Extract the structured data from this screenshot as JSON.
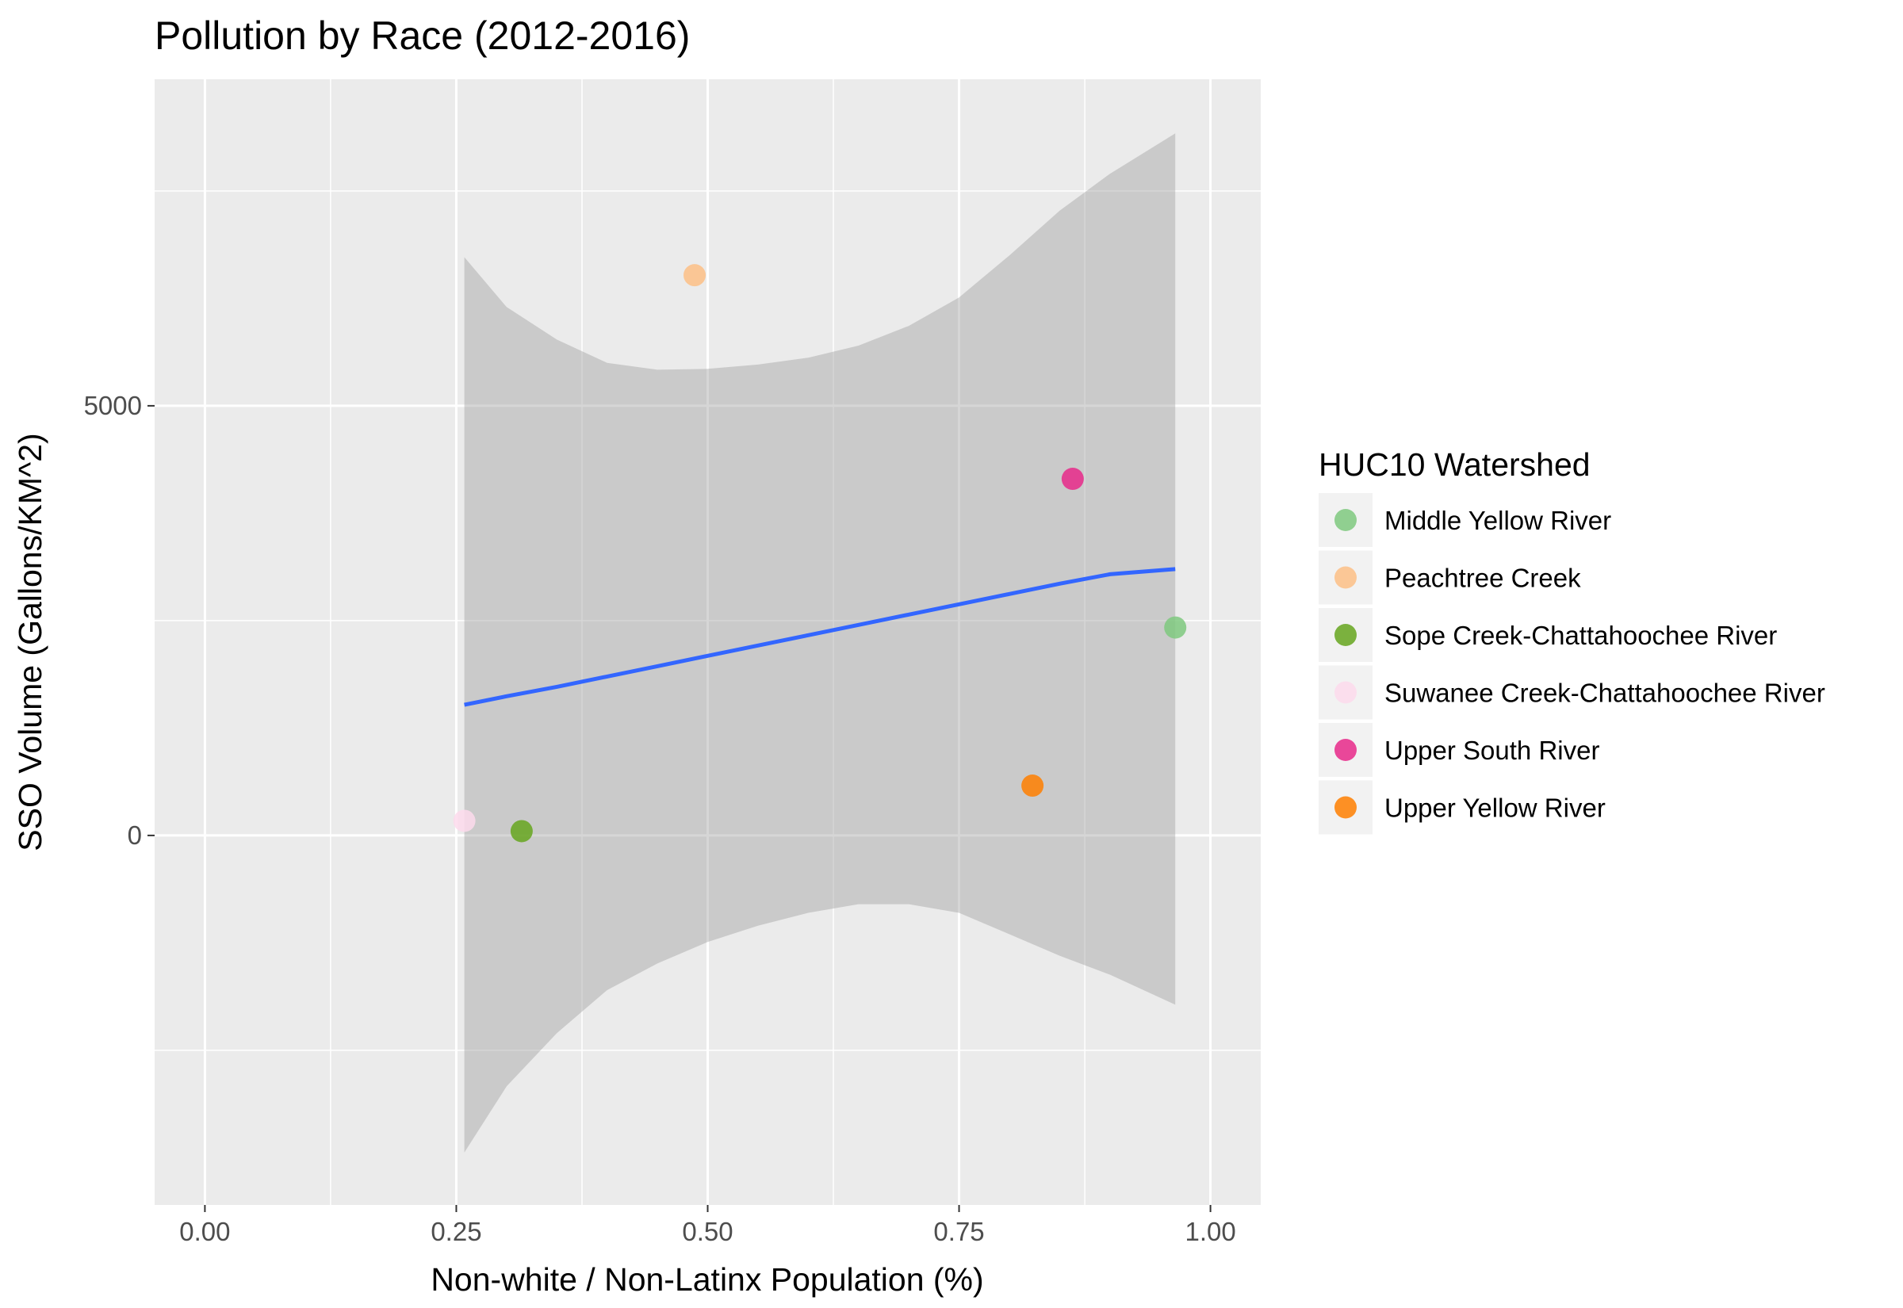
{
  "chart_data": {
    "type": "scatter",
    "title": "Pollution by Race (2012-2016)",
    "xlabel": "Non-white / Non-Latinx Population (%)",
    "ylabel": "SSO Volume (Gallons/KM^2)",
    "xlim": [
      -0.05,
      1.05
    ],
    "ylim": [
      -4300,
      8800
    ],
    "x_ticks": [
      0.0,
      0.25,
      0.5,
      0.75,
      1.0
    ],
    "x_tick_labels": [
      "0.00",
      "0.25",
      "0.50",
      "0.75",
      "1.00"
    ],
    "y_ticks": [
      0,
      5000
    ],
    "y_tick_labels": [
      "0",
      "5000"
    ],
    "grid": true,
    "legend": {
      "title": "HUC10 Watershed",
      "position": "right"
    },
    "series": [
      {
        "name": "Middle Yellow River",
        "color": "#7fc97f",
        "x": 0.965,
        "y": 2420
      },
      {
        "name": "Peachtree Creek",
        "color": "#fdc086",
        "x": 0.487,
        "y": 6520
      },
      {
        "name": "Sope Creek-Chattahoochee River",
        "color": "#66a61e",
        "x": 0.315,
        "y": 50
      },
      {
        "name": "Suwanee Creek-Chattahoochee River",
        "color": "#fddaec",
        "x": 0.258,
        "y": 170
      },
      {
        "name": "Upper South River",
        "color": "#e7298a",
        "x": 0.863,
        "y": 4150
      },
      {
        "name": "Upper Yellow River",
        "color": "#ff7f00",
        "x": 0.823,
        "y": 580
      }
    ],
    "regression": {
      "method": "lm",
      "color": "#3366ff",
      "confidence_band": true,
      "fit": [
        {
          "x": 0.258,
          "y": 1520,
          "lower": -3690,
          "upper": 6730
        },
        {
          "x": 0.3,
          "y": 1620,
          "lower": -2920,
          "upper": 6150
        },
        {
          "x": 0.35,
          "y": 1730,
          "lower": -2300,
          "upper": 5770
        },
        {
          "x": 0.4,
          "y": 1850,
          "lower": -1800,
          "upper": 5500
        },
        {
          "x": 0.45,
          "y": 1970,
          "lower": -1490,
          "upper": 5420
        },
        {
          "x": 0.5,
          "y": 2090,
          "lower": -1240,
          "upper": 5430
        },
        {
          "x": 0.55,
          "y": 2210,
          "lower": -1050,
          "upper": 5480
        },
        {
          "x": 0.6,
          "y": 2330,
          "lower": -900,
          "upper": 5560
        },
        {
          "x": 0.65,
          "y": 2450,
          "lower": -800,
          "upper": 5700
        },
        {
          "x": 0.7,
          "y": 2570,
          "lower": -800,
          "upper": 5930
        },
        {
          "x": 0.75,
          "y": 2690,
          "lower": -900,
          "upper": 6260
        },
        {
          "x": 0.8,
          "y": 2810,
          "lower": -1150,
          "upper": 6750
        },
        {
          "x": 0.85,
          "y": 2930,
          "lower": -1400,
          "upper": 7270
        },
        {
          "x": 0.9,
          "y": 3040,
          "lower": -1620,
          "upper": 7700
        },
        {
          "x": 0.965,
          "y": 3100,
          "lower": -1970,
          "upper": 8170
        }
      ]
    }
  }
}
